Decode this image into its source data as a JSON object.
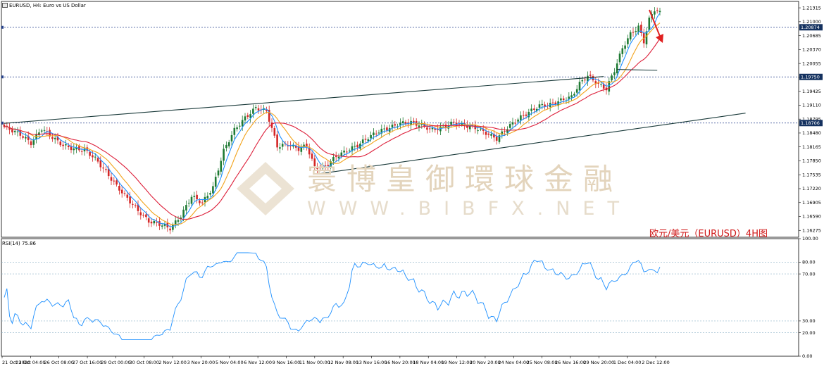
{
  "header": {
    "symbol_line": "EURUSD, H4:  Euro vs US Dollar",
    "rsi_label": "RSI(14) 75.86"
  },
  "watermark": {
    "title": "寰博皇御環球金融",
    "url": "WWW.BIBFX.NET"
  },
  "annotation": "欧元/美元（EURUSD）4H图",
  "colors": {
    "bull": "#1e7a33",
    "bear": "#d42626",
    "ma_fast": "#1e90ff",
    "ma_mid": "#f2a31b",
    "ma_slow": "#dd1f3a",
    "rsi": "#1e90ff",
    "hline": "#233f8a",
    "trend": "#1a3a3a",
    "arrow": "#e02020",
    "marker_bg": "#14315f"
  },
  "chart_data": [
    {
      "type": "candlestick",
      "symbol": "EURUSD",
      "timeframe": "H4",
      "price_ticks": [
        "1.21315",
        "1.21000",
        "1.20685",
        "1.20370",
        "1.20055",
        "1.19740",
        "1.19425",
        "1.19110",
        "1.18795",
        "1.18480",
        "1.18165",
        "1.17850",
        "1.17535",
        "1.17220",
        "1.16905",
        "1.16590",
        "1.16275"
      ],
      "price_range": [
        1.1612,
        1.2146
      ],
      "horizontal_levels": [
        {
          "price": 1.20874,
          "label": "1.20874"
        },
        {
          "price": 1.1975,
          "label": "1.19750"
        },
        {
          "price": 1.18706,
          "label": "1.18706"
        }
      ],
      "time_labels": [
        "21 Oct 2020",
        "23 Oct 04:00",
        "26 Oct 08:00",
        "27 Oct 16:00",
        "29 Oct 00:00",
        "30 Oct 08:00",
        "2 Nov 12:00",
        "3 Nov 20:00",
        "5 Nov 04:00",
        "6 Nov 12:00",
        "9 Nov 16:00",
        "11 Nov 00:00",
        "12 Nov 08:00",
        "13 Nov 16:00",
        "16 Nov 20:00",
        "18 Nov 04:00",
        "19 Nov 12:00",
        "20 Nov 20:00",
        "24 Nov 04:00",
        "25 Nov 08:00",
        "26 Nov 16:00",
        "29 Nov 20:00",
        "1 Dec 04:00",
        "2 Dec 12:00"
      ],
      "close_path": [
        [
          0,
          1.1862
        ],
        [
          6,
          1.1845
        ],
        [
          10,
          1.1825
        ],
        [
          14,
          1.1858
        ],
        [
          18,
          1.1838
        ],
        [
          22,
          1.182
        ],
        [
          26,
          1.1812
        ],
        [
          30,
          1.181
        ],
        [
          34,
          1.179
        ],
        [
          38,
          1.176
        ],
        [
          42,
          1.1728
        ],
        [
          46,
          1.17
        ],
        [
          50,
          1.1672
        ],
        [
          54,
          1.1648
        ],
        [
          58,
          1.1642
        ],
        [
          62,
          1.1632
        ],
        [
          66,
          1.166
        ],
        [
          70,
          1.1705
        ],
        [
          74,
          1.169
        ],
        [
          78,
          1.1725
        ],
        [
          82,
          1.1808
        ],
        [
          86,
          1.1855
        ],
        [
          90,
          1.1882
        ],
        [
          94,
          1.1905
        ],
        [
          98,
          1.1898
        ],
        [
          102,
          1.1818
        ],
        [
          106,
          1.1822
        ],
        [
          110,
          1.1812
        ],
        [
          113,
          1.182
        ],
        [
          116,
          1.177
        ],
        [
          120,
          1.1772
        ],
        [
          124,
          1.1795
        ],
        [
          128,
          1.1808
        ],
        [
          132,
          1.182
        ],
        [
          136,
          1.1838
        ],
        [
          140,
          1.1852
        ],
        [
          144,
          1.186
        ],
        [
          148,
          1.187
        ],
        [
          152,
          1.1872
        ],
        [
          156,
          1.1865
        ],
        [
          160,
          1.1855
        ],
        [
          164,
          1.1862
        ],
        [
          168,
          1.1872
        ],
        [
          172,
          1.1865
        ],
        [
          176,
          1.186
        ],
        [
          180,
          1.1848
        ],
        [
          184,
          1.1835
        ],
        [
          188,
          1.186
        ],
        [
          192,
          1.188
        ],
        [
          196,
          1.1895
        ],
        [
          200,
          1.191
        ],
        [
          204,
          1.1912
        ],
        [
          208,
          1.1922
        ],
        [
          212,
          1.193
        ],
        [
          215,
          1.196
        ],
        [
          218,
          1.1978
        ],
        [
          222,
          1.1958
        ],
        [
          225,
          1.1948
        ],
        [
          228,
          1.199
        ],
        [
          231,
          1.204
        ],
        [
          234,
          1.2072
        ],
        [
          237,
          1.2088
        ],
        [
          239,
          1.2055
        ],
        [
          241,
          1.2105
        ],
        [
          243,
          1.2128
        ],
        [
          245,
          1.212
        ]
      ],
      "rsi": {
        "name": "RSI(14)",
        "last": 75.86,
        "range": [
          0,
          100
        ],
        "ticks": [
          "100.00",
          "80.00",
          "70.00",
          "30.00",
          "20.00",
          "0.00"
        ],
        "levels": [
          80,
          70,
          30,
          20
        ]
      },
      "trendlines": [
        {
          "from": [
            0,
            1.187
          ],
          "to": [
            224,
            1.1976
          ]
        },
        {
          "from": [
            118,
            1.1756
          ],
          "to": [
            277,
            1.1893
          ]
        },
        {
          "from": [
            229,
            1.1992
          ],
          "to": [
            244,
            1.199
          ]
        }
      ]
    }
  ]
}
